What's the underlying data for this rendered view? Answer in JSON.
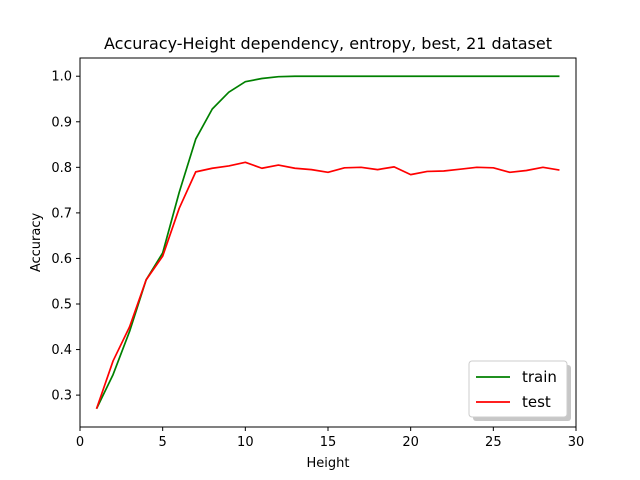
{
  "chart_data": {
    "type": "line",
    "title": "Accuracy-Height dependency, entropy, best, 21 dataset",
    "xlabel": "Height",
    "ylabel": "Accuracy",
    "xlim": [
      0,
      30
    ],
    "ylim": [
      0.23,
      1.04
    ],
    "xticks": [
      0,
      5,
      10,
      15,
      20,
      25,
      30
    ],
    "yticks": [
      0.3,
      0.4,
      0.5,
      0.6,
      0.7,
      0.8,
      0.9,
      1.0
    ],
    "ytick_labels": [
      "0.3",
      "0.4",
      "0.5",
      "0.6",
      "0.7",
      "0.8",
      "0.9",
      "1.0"
    ],
    "grid": false,
    "legend_position": "lower-right",
    "x": [
      1,
      2,
      3,
      4,
      5,
      6,
      7,
      8,
      9,
      10,
      11,
      12,
      13,
      14,
      15,
      16,
      17,
      18,
      19,
      20,
      21,
      22,
      23,
      24,
      25,
      26,
      27,
      28,
      29
    ],
    "series": [
      {
        "name": "train",
        "color": "#008000",
        "values": [
          0.27,
          0.345,
          0.44,
          0.553,
          0.612,
          0.745,
          0.862,
          0.928,
          0.965,
          0.988,
          0.995,
          0.999,
          1.0,
          1.0,
          1.0,
          1.0,
          1.0,
          1.0,
          1.0,
          1.0,
          1.0,
          1.0,
          1.0,
          1.0,
          1.0,
          1.0,
          1.0,
          1.0,
          1.0
        ]
      },
      {
        "name": "test",
        "color": "#ff0000",
        "values": [
          0.27,
          0.375,
          0.45,
          0.553,
          0.605,
          0.71,
          0.79,
          0.798,
          0.803,
          0.811,
          0.798,
          0.805,
          0.798,
          0.795,
          0.789,
          0.799,
          0.8,
          0.795,
          0.801,
          0.784,
          0.791,
          0.792,
          0.796,
          0.8,
          0.799,
          0.789,
          0.793,
          0.8,
          0.794
        ]
      }
    ]
  }
}
